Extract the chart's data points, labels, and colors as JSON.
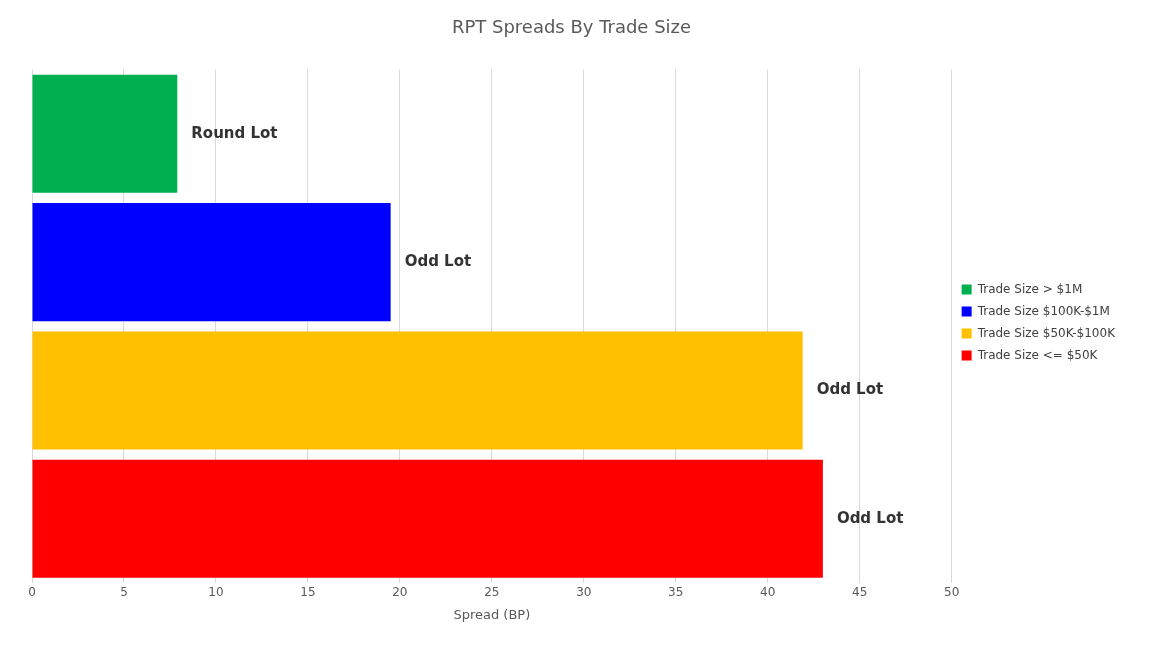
{
  "chart_data": {
    "type": "bar",
    "orientation": "horizontal",
    "title": "RPT Spreads By Trade Size",
    "xlabel": "Spread (BP)",
    "categories": [
      null,
      null,
      null,
      null
    ],
    "series": [
      {
        "name": "Trade Size > $1M",
        "color": "#00b050",
        "values": [
          7.9,
          null,
          null,
          null
        ],
        "value_labels": [
          "Round Lot",
          null,
          null,
          null
        ]
      },
      {
        "name": "Trade Size $100K-$1M",
        "color": "#0000ff",
        "values": [
          null,
          19.5,
          null,
          null
        ],
        "value_labels": [
          null,
          "Odd Lot",
          null,
          null
        ]
      },
      {
        "name": "Trade Size $50K-$100K",
        "color": "#ffc000",
        "values": [
          null,
          null,
          41.9,
          null
        ],
        "value_labels": [
          null,
          null,
          "Odd Lot",
          null
        ]
      },
      {
        "name": "Trade Size <= $50K",
        "color": "#ff0000",
        "values": [
          null,
          null,
          null,
          43.0
        ],
        "value_labels": [
          null,
          null,
          null,
          "Odd Lot"
        ]
      }
    ],
    "xlim": [
      0,
      50
    ],
    "xticks": [
      0,
      5,
      10,
      15,
      20,
      25,
      30,
      35,
      40,
      45,
      50
    ],
    "grid": "x",
    "legend": "right"
  }
}
